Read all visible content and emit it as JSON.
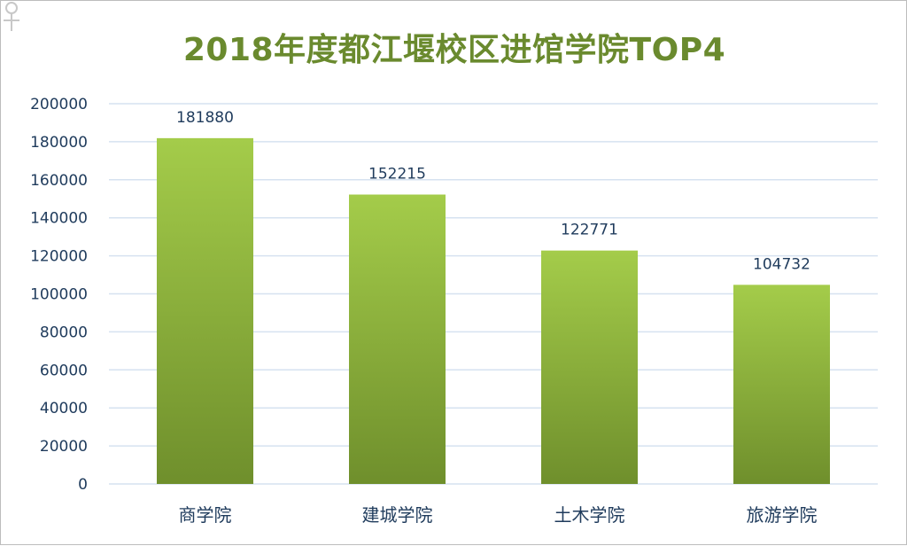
{
  "chart_data": {
    "type": "bar",
    "title": "2018年度都江堰校区进馆学院TOP4",
    "categories": [
      "商学院",
      "建城学院",
      "土木学院",
      "旅游学院"
    ],
    "values": [
      181880,
      152215,
      122771,
      104732
    ],
    "ylim": [
      0,
      200000
    ],
    "yticks": [
      0,
      20000,
      40000,
      60000,
      80000,
      100000,
      120000,
      140000,
      160000,
      180000,
      200000
    ],
    "grid": true,
    "legend": "none",
    "colors": {
      "bar_top": "#a4cc4a",
      "bar_bottom": "#6f8f2c",
      "grid": "#d6e2f0",
      "title": "#6a8a2e",
      "text": "#1f3b5c"
    }
  }
}
